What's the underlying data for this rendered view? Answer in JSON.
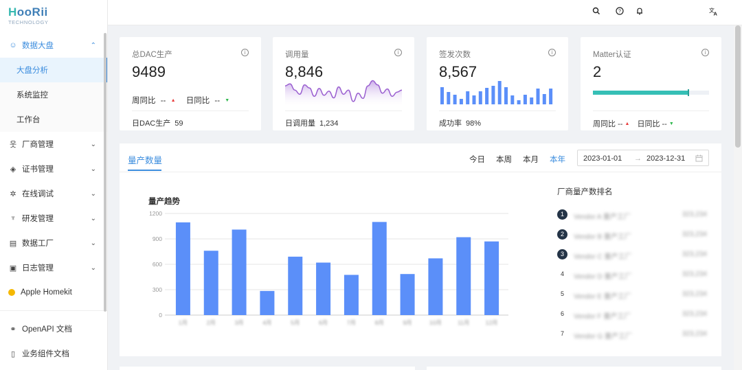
{
  "logo": {
    "brand": "HooRii",
    "sub": "TECHNOLOGY"
  },
  "sidebar": {
    "open_group": {
      "label": "数据大盘",
      "icon": "dashboard-icon"
    },
    "sub_items": [
      {
        "label": "大盘分析",
        "active": true
      },
      {
        "label": "系统监控",
        "active": false
      },
      {
        "label": "工作台",
        "active": false
      }
    ],
    "groups": [
      {
        "label": "厂商管理",
        "icon": "vendor-icon"
      },
      {
        "label": "证书管理",
        "icon": "certificate-icon"
      },
      {
        "label": "在线调试",
        "icon": "debug-icon"
      },
      {
        "label": "研发管理",
        "icon": "rnd-icon"
      },
      {
        "label": "数据工厂",
        "icon": "data-factory-icon"
      },
      {
        "label": "日志管理",
        "icon": "log-icon"
      }
    ],
    "homekit": "Apple Homekit",
    "docs": [
      {
        "label": "OpenAPI 文档",
        "icon": "link-icon"
      },
      {
        "label": "业务组件文档",
        "icon": "book-icon"
      }
    ]
  },
  "header_icons": [
    "search-icon",
    "help-icon",
    "bell-icon",
    "translate-icon"
  ],
  "stats": {
    "dac": {
      "title": "总DAC生产",
      "value": "9489",
      "wow_label": "周同比",
      "wow_value": "--",
      "dod_label": "日同比",
      "dod_value": "--",
      "footer_label": "日DAC生产",
      "footer_value": "59"
    },
    "calls": {
      "title": "调用量",
      "value": "8,846",
      "footer_label": "日调用量",
      "footer_value": "1,234",
      "sparkline": [
        38,
        42,
        30,
        22,
        40,
        34,
        18,
        33,
        20,
        28,
        15,
        36,
        22,
        30,
        8,
        24,
        14,
        38,
        48,
        40,
        24,
        32,
        18,
        26,
        30
      ]
    },
    "issued": {
      "title": "签发次数",
      "value": "8,567",
      "footer_label": "成功率",
      "footer_value": "98%",
      "bars": [
        25,
        18,
        14,
        8,
        19,
        13,
        19,
        24,
        27,
        34,
        25,
        13,
        6,
        14,
        10,
        23,
        15,
        23
      ]
    },
    "matter": {
      "title": "Matter认证",
      "value": "2",
      "progress": 0.83,
      "wow_label": "周同比",
      "wow_value": "--",
      "dod_label": "日同比",
      "dod_value": "--"
    }
  },
  "panel": {
    "tab": "量产数量",
    "ranges": [
      "今日",
      "本周",
      "本月",
      "本年"
    ],
    "active_range": "本年",
    "date_start": "2023-01-01",
    "date_sep": "→",
    "date_end": "2023-12-31",
    "chart_title": "量产趋势",
    "rank_title": "厂商量产数排名",
    "rank": [
      {
        "num": "1",
        "name": "Vendor A 量产工厂",
        "value": "323,234"
      },
      {
        "num": "2",
        "name": "Vendor B 量产工厂",
        "value": "323,234"
      },
      {
        "num": "3",
        "name": "Vendor C 量产工厂",
        "value": "323,234"
      },
      {
        "num": "4",
        "name": "Vendor D 量产工厂",
        "value": "323,234"
      },
      {
        "num": "5",
        "name": "Vendor E 量产工厂",
        "value": "323,234"
      },
      {
        "num": "6",
        "name": "Vendor F 量产工厂",
        "value": "323,234"
      },
      {
        "num": "7",
        "name": "Vendor G 量产工厂",
        "value": "323,234"
      }
    ]
  },
  "chart_data": {
    "type": "bar",
    "title": "量产趋势",
    "categories": [
      "1月",
      "2月",
      "3月",
      "4月",
      "5月",
      "6月",
      "7月",
      "8月",
      "9月",
      "10月",
      "11月",
      "12月"
    ],
    "values": [
      1095,
      760,
      1010,
      285,
      690,
      620,
      475,
      1100,
      485,
      670,
      920,
      870
    ],
    "ylim": [
      0,
      1200
    ],
    "yticks": [
      0,
      300,
      600,
      900,
      1200
    ],
    "color": "#5b8ff9",
    "grid": true
  }
}
